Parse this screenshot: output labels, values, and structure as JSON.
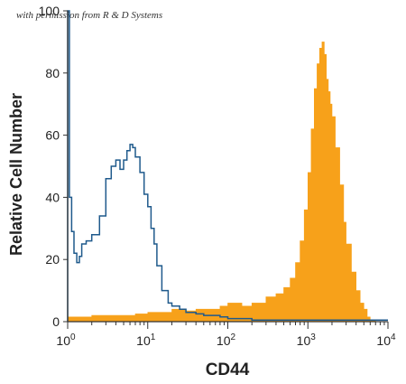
{
  "watermark": "with permission from R & D Systems",
  "chart_data": {
    "type": "area",
    "title": "",
    "xlabel": "CD44",
    "ylabel": "Relative Cell Number",
    "x_scale": "log",
    "xlim": [
      1,
      10000
    ],
    "ylim": [
      0,
      100
    ],
    "grid": false,
    "legend": "none",
    "x_ticks": [
      {
        "value": 1,
        "base": "10",
        "exp": "0"
      },
      {
        "value": 10,
        "base": "10",
        "exp": "1"
      },
      {
        "value": 100,
        "base": "10",
        "exp": "2"
      },
      {
        "value": 1000,
        "base": "10",
        "exp": "3"
      },
      {
        "value": 10000,
        "base": "10",
        "exp": "4"
      }
    ],
    "y_ticks": [
      {
        "value": 0,
        "label": "0"
      },
      {
        "value": 20,
        "label": "20"
      },
      {
        "value": 40,
        "label": "40"
      },
      {
        "value": 60,
        "label": "60"
      },
      {
        "value": 80,
        "label": "80"
      },
      {
        "value": 100,
        "label": "100"
      }
    ],
    "series": [
      {
        "style": "outline",
        "color": "#1f5a8c",
        "x": [
          1,
          1.05,
          1.12,
          1.2,
          1.3,
          1.4,
          1.5,
          1.7,
          2,
          2.5,
          3,
          3.5,
          4,
          4.5,
          5,
          5.5,
          6,
          6.5,
          7,
          8,
          9,
          10,
          11,
          12,
          13,
          15,
          18,
          20,
          25,
          30,
          40,
          50,
          60,
          80,
          100,
          150,
          200,
          300,
          500,
          1000,
          2000,
          5000,
          10000
        ],
        "y": [
          100,
          40,
          29,
          22,
          19,
          21,
          25,
          26,
          28,
          34,
          46,
          50,
          52,
          49,
          52,
          55,
          57,
          56,
          53,
          48,
          41,
          37,
          30,
          25,
          18,
          10,
          6,
          5,
          4,
          3,
          2.5,
          2,
          2,
          1.5,
          1,
          1,
          0.5,
          0.5,
          0.5,
          0.5,
          0.5,
          0.5,
          0.5
        ]
      },
      {
        "style": "filled",
        "color": "#f7a11a",
        "x": [
          1,
          1.5,
          2,
          3,
          5,
          7,
          10,
          15,
          20,
          30,
          40,
          60,
          80,
          100,
          150,
          200,
          300,
          400,
          500,
          600,
          700,
          800,
          900,
          1000,
          1100,
          1200,
          1300,
          1400,
          1500,
          1600,
          1700,
          1800,
          1900,
          2000,
          2200,
          2500,
          2800,
          3000,
          3500,
          4000,
          4500,
          5000,
          5500,
          6000,
          7000,
          10000
        ],
        "y": [
          1.5,
          1.5,
          2,
          2,
          2,
          2.5,
          3,
          3,
          4,
          3.5,
          4,
          4,
          5,
          6,
          5,
          6,
          8,
          9,
          11,
          14,
          19,
          26,
          36,
          48,
          62,
          75,
          83,
          88,
          90,
          86,
          78,
          74,
          70,
          66,
          56,
          44,
          32,
          25,
          16,
          10,
          6,
          4,
          1.5,
          0.5,
          0,
          0
        ]
      }
    ]
  }
}
